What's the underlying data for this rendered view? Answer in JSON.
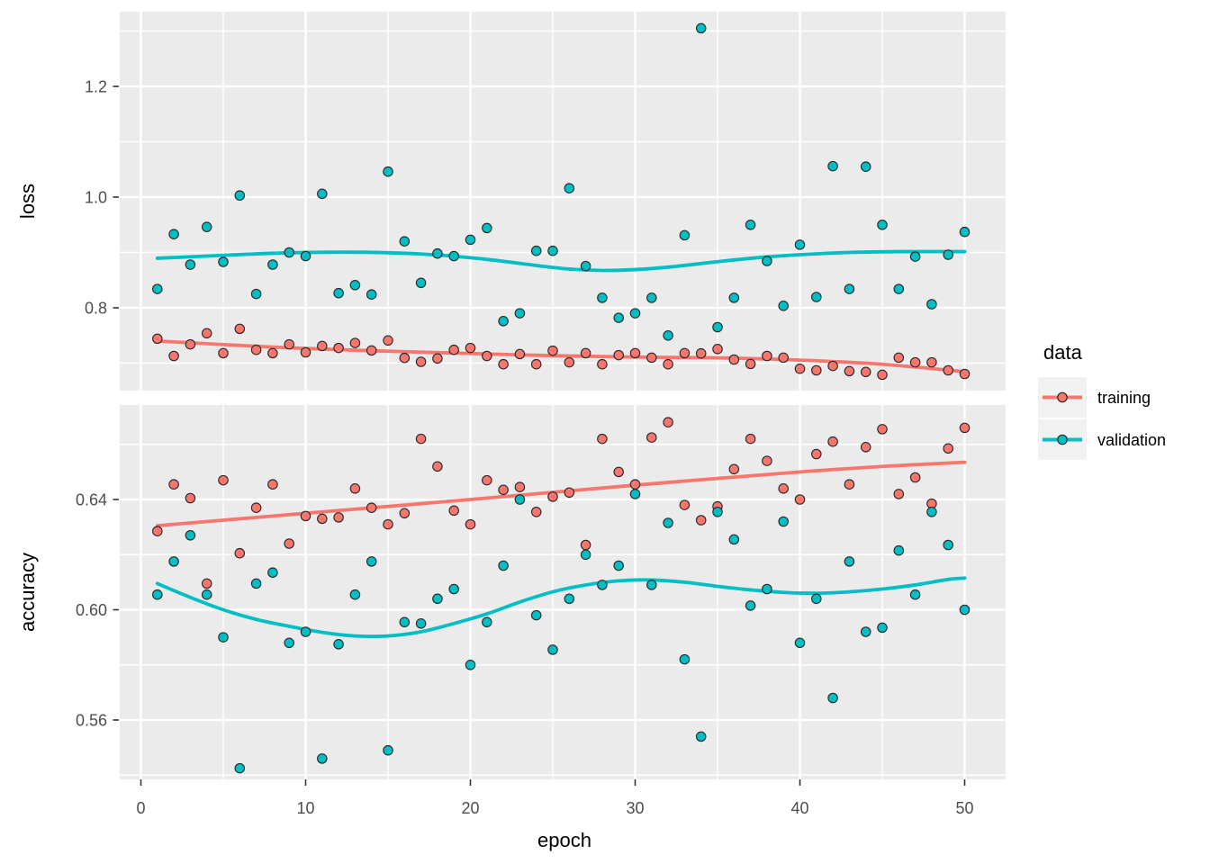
{
  "figure": {
    "background": "#FFFFFF",
    "panel_bg": "#EBEBEB",
    "grid_color": "#FFFFFF",
    "tick_mark_color": "#333333",
    "tick_label_color": "#4D4D4D",
    "point_outline": "#2B2B2B",
    "legend_key_bg": "#F1F1F1"
  },
  "legend": {
    "title": "data",
    "items": [
      {
        "label": "training",
        "color": "#F8766D"
      },
      {
        "label": "validation",
        "color": "#00BFC4"
      }
    ]
  },
  "axes": {
    "x": {
      "title": "epoch",
      "ticks": [
        0,
        10,
        20,
        30,
        40,
        50
      ],
      "tick_labels": [
        "0",
        "10",
        "20",
        "30",
        "40",
        "50"
      ],
      "minor": [
        5,
        15,
        25,
        35,
        45
      ],
      "range": [
        -1.3,
        52.5
      ]
    }
  },
  "chart_data": [
    {
      "type": "scatter",
      "panel": "loss",
      "title": "",
      "xlabel": "epoch",
      "ylabel": "loss",
      "grid": true,
      "legend_position": "right",
      "ylim": [
        0.65,
        1.335
      ],
      "yticks": [
        0.8,
        1.0,
        1.2
      ],
      "ytick_labels": [
        "0.8",
        "1.0",
        "1.2"
      ],
      "yminor": [
        0.7,
        0.9,
        1.1,
        1.3
      ],
      "x": [
        1,
        2,
        3,
        4,
        5,
        6,
        7,
        8,
        9,
        10,
        11,
        12,
        13,
        14,
        15,
        16,
        17,
        18,
        19,
        20,
        21,
        22,
        23,
        24,
        25,
        26,
        27,
        28,
        29,
        30,
        31,
        32,
        33,
        34,
        35,
        36,
        37,
        38,
        39,
        40,
        41,
        42,
        43,
        44,
        45,
        46,
        47,
        48,
        49,
        50
      ],
      "series": [
        {
          "name": "training",
          "color": "#F8766D",
          "values": [
            0.744,
            0.713,
            0.734,
            0.754,
            0.718,
            0.762,
            0.724,
            0.718,
            0.734,
            0.7195,
            0.731,
            0.7275,
            0.7365,
            0.723,
            0.741,
            0.7095,
            0.7025,
            0.7085,
            0.724,
            0.7275,
            0.713,
            0.698,
            0.7165,
            0.698,
            0.7225,
            0.7015,
            0.718,
            0.698,
            0.7145,
            0.718,
            0.71,
            0.698,
            0.718,
            0.7175,
            0.7255,
            0.7065,
            0.6985,
            0.713,
            0.71,
            0.69,
            0.687,
            0.695,
            0.6855,
            0.684,
            0.679,
            0.71,
            0.7015,
            0.7015,
            0.687,
            0.6805
          ]
        },
        {
          "name": "validation",
          "color": "#00BFC4",
          "values": [
            0.834,
            0.933,
            0.878,
            0.946,
            0.883,
            1.003,
            0.825,
            0.878,
            0.9,
            0.8935,
            1.006,
            0.8265,
            0.841,
            0.824,
            1.046,
            0.92,
            0.845,
            0.898,
            0.8935,
            0.923,
            0.944,
            0.776,
            0.79,
            0.903,
            0.903,
            1.016,
            0.8755,
            0.818,
            0.782,
            0.79,
            0.818,
            0.75,
            0.931,
            1.305,
            0.765,
            0.818,
            0.95,
            0.8845,
            0.8035,
            0.914,
            0.8195,
            1.056,
            0.834,
            1.055,
            0.95,
            0.834,
            0.8925,
            0.8065,
            0.896,
            0.937
          ]
        }
      ],
      "smooth": [
        {
          "name": "training",
          "color": "#F8766D",
          "x": [
            1,
            5,
            10,
            15,
            20,
            25,
            30,
            35,
            40,
            45,
            50
          ],
          "y": [
            0.74,
            0.7335,
            0.7265,
            0.7215,
            0.7175,
            0.7135,
            0.711,
            0.7095,
            0.7055,
            0.698,
            0.6845
          ]
        },
        {
          "name": "validation",
          "color": "#00BFC4",
          "x": [
            1,
            4,
            8,
            12,
            15,
            18,
            21,
            24,
            26,
            28,
            30,
            32,
            34,
            36,
            38,
            40,
            43,
            46,
            50
          ],
          "y": [
            0.8895,
            0.8935,
            0.8985,
            0.9005,
            0.8995,
            0.8955,
            0.8875,
            0.8765,
            0.87,
            0.8675,
            0.869,
            0.8735,
            0.88,
            0.8865,
            0.892,
            0.896,
            0.9,
            0.9015,
            0.9015
          ]
        }
      ]
    },
    {
      "type": "scatter",
      "panel": "accuracy",
      "title": "",
      "xlabel": "epoch",
      "ylabel": "accuracy",
      "grid": true,
      "legend_position": "right",
      "ylim": [
        0.5385,
        0.6745
      ],
      "yticks": [
        0.56,
        0.6,
        0.64
      ],
      "ytick_labels": [
        "0.56",
        "0.60",
        "0.64"
      ],
      "yminor": [
        0.54,
        0.58,
        0.62,
        0.66
      ],
      "x": [
        1,
        2,
        3,
        4,
        5,
        6,
        7,
        8,
        9,
        10,
        11,
        12,
        13,
        14,
        15,
        16,
        17,
        18,
        19,
        20,
        21,
        22,
        23,
        24,
        25,
        26,
        27,
        28,
        29,
        30,
        31,
        32,
        33,
        34,
        35,
        36,
        37,
        38,
        39,
        40,
        41,
        42,
        43,
        44,
        45,
        46,
        47,
        48,
        49,
        50
      ],
      "series": [
        {
          "name": "training",
          "color": "#F8766D",
          "values": [
            0.6285,
            0.6455,
            0.6405,
            0.6095,
            0.647,
            0.6205,
            0.637,
            0.6455,
            0.624,
            0.634,
            0.633,
            0.6335,
            0.644,
            0.637,
            0.631,
            0.635,
            0.662,
            0.652,
            0.636,
            0.631,
            0.647,
            0.6435,
            0.6445,
            0.6355,
            0.641,
            0.6425,
            0.6235,
            0.662,
            0.65,
            0.6455,
            0.6625,
            0.668,
            0.638,
            0.6325,
            0.6375,
            0.651,
            0.662,
            0.654,
            0.644,
            0.64,
            0.6565,
            0.661,
            0.6455,
            0.659,
            0.6655,
            0.642,
            0.648,
            0.6385,
            0.6585,
            0.666
          ]
        },
        {
          "name": "validation",
          "color": "#00BFC4",
          "values": [
            0.6055,
            0.6175,
            0.627,
            0.6055,
            0.59,
            0.5425,
            0.6095,
            0.6135,
            0.588,
            0.592,
            0.546,
            0.5875,
            0.6055,
            0.6175,
            0.549,
            0.5955,
            0.595,
            0.604,
            0.6075,
            0.58,
            0.5955,
            0.616,
            0.64,
            0.598,
            0.5855,
            0.604,
            0.62,
            0.609,
            0.616,
            0.642,
            0.609,
            0.6315,
            0.582,
            0.554,
            0.6355,
            0.6255,
            0.6015,
            0.6075,
            0.632,
            0.588,
            0.604,
            0.568,
            0.6175,
            0.592,
            0.5935,
            0.6215,
            0.6055,
            0.6355,
            0.6235,
            0.6
          ]
        }
      ],
      "smooth": [
        {
          "name": "training",
          "color": "#F8766D",
          "x": [
            1,
            10,
            20,
            30,
            40,
            45,
            50
          ],
          "y": [
            0.6305,
            0.635,
            0.64,
            0.6452,
            0.65,
            0.652,
            0.6535
          ]
        },
        {
          "name": "validation",
          "color": "#00BFC4",
          "x": [
            1,
            3,
            5,
            7,
            9,
            11,
            13,
            15,
            17,
            19,
            21,
            23,
            25,
            27,
            29,
            31,
            33,
            35,
            37,
            39,
            41,
            43,
            45,
            47,
            49,
            50
          ],
          "y": [
            0.6095,
            0.6045,
            0.6,
            0.5965,
            0.594,
            0.5918,
            0.5905,
            0.5905,
            0.592,
            0.595,
            0.5985,
            0.6028,
            0.6065,
            0.609,
            0.6105,
            0.6108,
            0.61,
            0.6085,
            0.6072,
            0.6063,
            0.606,
            0.6065,
            0.6075,
            0.609,
            0.611,
            0.6115
          ]
        }
      ]
    }
  ]
}
